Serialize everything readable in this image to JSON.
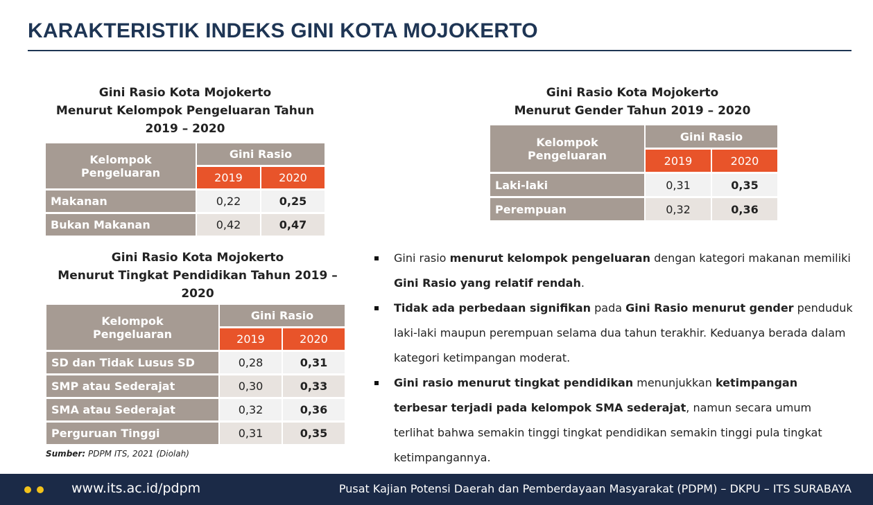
{
  "header": {
    "title": "KARAKTERISTIK INDEKS GINI KOTA MOJOKERTO"
  },
  "tables": [
    {
      "title": [
        "Gini Rasio Kota Mojokerto",
        "Menurut Kelompok Pengeluaran Tahun",
        "2019 – 2020"
      ],
      "row_header": "Kelompok Pengeluaran",
      "group_header": "Gini Rasio",
      "years": [
        "2019",
        "2020"
      ],
      "rows": [
        [
          "Makanan",
          "0,22",
          "0,25"
        ],
        [
          "Bukan Makanan",
          "0,42",
          "0,47"
        ]
      ]
    },
    {
      "title": [
        "Gini Rasio Kota Mojokerto",
        "Menurut Gender Tahun 2019 – 2020"
      ],
      "row_header": "Kelompok Pengeluaran",
      "group_header": "Gini Rasio",
      "years": [
        "2019",
        "2020"
      ],
      "rows": [
        [
          "Laki-laki",
          "0,31",
          "0,35"
        ],
        [
          "Perempuan",
          "0,32",
          "0,36"
        ]
      ]
    },
    {
      "title": [
        "Gini Rasio Kota Mojokerto",
        "Menurut Tingkat Pendidikan Tahun 2019 –",
        "2020"
      ],
      "row_header": "Kelompok Pengeluaran",
      "group_header": "Gini Rasio",
      "years": [
        "2019",
        "2020"
      ],
      "rows": [
        [
          "SD dan Tidak Lusus SD",
          "0,28",
          "0,31"
        ],
        [
          "SMP atau Sederajat",
          "0,30",
          "0,33"
        ],
        [
          "SMA atau Sederajat",
          "0,32",
          "0,36"
        ],
        [
          "Perguruan Tinggi",
          "0,31",
          "0,35"
        ]
      ]
    }
  ],
  "source": {
    "label": "Sumber:",
    "text": "PDPM ITS, 2021 (Diolah)"
  },
  "bullets": [
    [
      {
        "text": "Gini rasio ",
        "bold": false
      },
      {
        "text": "menurut kelompok pengeluaran",
        "bold": true
      },
      {
        "text": " dengan kategori makanan memiliki ",
        "bold": false
      },
      {
        "text": "Gini Rasio yang relatif rendah",
        "bold": true
      },
      {
        "text": ".",
        "bold": false
      }
    ],
    [
      {
        "text": "Tidak ada perbedaan signifikan",
        "bold": true
      },
      {
        "text": " pada ",
        "bold": false
      },
      {
        "text": "Gini Rasio menurut gender",
        "bold": true
      },
      {
        "text": " penduduk laki-laki maupun perempuan selama dua tahun terakhir. Keduanya berada dalam kategori ketimpangan moderat.",
        "bold": false
      }
    ],
    [
      {
        "text": "Gini rasio menurut tingkat pendidikan",
        "bold": true
      },
      {
        "text": " menunjukkan ",
        "bold": false
      },
      {
        "text": "ketimpangan terbesar terjadi pada kelompok SMA sederajat",
        "bold": true
      },
      {
        "text": ", namun secara umum terlihat bahwa semakin tinggi tingkat pendidikan semakin tinggi pula tingkat ketimpangannya.",
        "bold": false
      }
    ]
  ],
  "footer": {
    "url": "www.its.ac.id/pdpm",
    "organization": "Pusat Kajian Potensi Daerah dan Pemberdayaan Masyarakat (PDPM) – DKPU – ITS SURABAYA"
  }
}
